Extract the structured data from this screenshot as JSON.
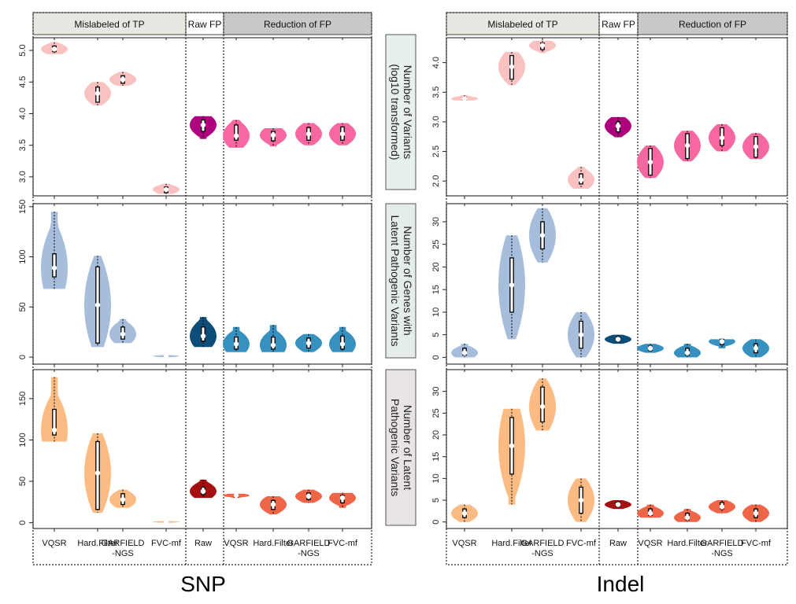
{
  "figure": {
    "panels": [
      {
        "title": "SNP"
      },
      {
        "title": "Indel"
      }
    ],
    "group_strips": {
      "mislabeled": "Mislabeled of TP",
      "raw": "Raw FP",
      "reduction": "Reduction of FP"
    },
    "x_labels": {
      "left": [
        "VQSR",
        "Hard.Filter",
        "GARFIELD\n-NGS",
        "FVC-mf"
      ],
      "raw": "Raw",
      "right": [
        "VQSR",
        "Hard.Filter",
        "GARFIELD\n-NGS",
        "FVC-mf"
      ]
    },
    "row_labels": [
      {
        "lines": [
          "Number of Variants",
          "(log10 transformed)"
        ],
        "bg": "#e8f0ec"
      },
      {
        "lines": [
          "Number of Genes with",
          "Latent Pathogenic Variants"
        ],
        "bg": "#e4ecec"
      },
      {
        "lines": [
          "Number of Latent",
          "Pathogenic Variants"
        ],
        "bg": "#e8e4e4"
      }
    ]
  },
  "colors": {
    "row1": {
      "light": "#f9c2c1",
      "raw": "#ae017e",
      "red": "#f768a1"
    },
    "row2": {
      "light": "#a6bddb",
      "raw": "#0c4e78",
      "red": "#3690c0"
    },
    "row3": {
      "light": "#fdbb84",
      "raw": "#a50f0f",
      "red": "#ef6548"
    },
    "strip_light": "#e8e8e2",
    "strip_dark": "#c8c8c8"
  },
  "chart_data": [
    {
      "type": "violin",
      "panel": "SNP",
      "row": "Number of Variants (log10 transformed)",
      "ylim": [
        2.7,
        5.2
      ],
      "yticks": [
        3.0,
        3.5,
        4.0,
        4.5,
        5.0
      ],
      "categories": [
        "VQSR",
        "Hard.Filter",
        "GARFIELD-NGS",
        "FVC-mf",
        "Raw",
        "VQSR",
        "Hard.Filter",
        "GARFIELD-NGS",
        "FVC-mf"
      ],
      "violins": [
        {
          "group": "Mislabeled of TP",
          "label": "VQSR",
          "min": 4.94,
          "q1": 4.98,
          "median": 5.02,
          "q3": 5.07,
          "max": 5.13,
          "maxw": 0.55
        },
        {
          "group": "Mislabeled of TP",
          "label": "Hard.Filter",
          "min": 4.13,
          "q1": 4.18,
          "median": 4.32,
          "q3": 4.42,
          "max": 4.5,
          "maxw": 0.55
        },
        {
          "group": "Mislabeled of TP",
          "label": "GARFIELD-NGS",
          "min": 4.44,
          "q1": 4.48,
          "median": 4.54,
          "q3": 4.6,
          "max": 4.66,
          "maxw": 0.55
        },
        {
          "group": "Mislabeled of TP",
          "label": "FVC-mf",
          "min": 2.73,
          "q1": 2.75,
          "median": 2.8,
          "q3": 2.84,
          "max": 2.89,
          "maxw": 0.55
        },
        {
          "group": "Raw FP",
          "label": "Raw",
          "min": 3.6,
          "q1": 3.72,
          "median": 3.82,
          "q3": 3.9,
          "max": 3.96,
          "maxw": 0.55
        },
        {
          "group": "Reduction of FP",
          "label": "VQSR",
          "min": 3.46,
          "q1": 3.58,
          "median": 3.65,
          "q3": 3.82,
          "max": 3.9,
          "maxw": 0.55
        },
        {
          "group": "Reduction of FP",
          "label": "Hard.Filter",
          "min": 3.48,
          "q1": 3.57,
          "median": 3.66,
          "q3": 3.72,
          "max": 3.77,
          "maxw": 0.55
        },
        {
          "group": "Reduction of FP",
          "label": "GARFIELD-NGS",
          "min": 3.5,
          "q1": 3.58,
          "median": 3.68,
          "q3": 3.78,
          "max": 3.85,
          "maxw": 0.55
        },
        {
          "group": "Reduction of FP",
          "label": "FVC-mf",
          "min": 3.5,
          "q1": 3.58,
          "median": 3.68,
          "q3": 3.79,
          "max": 3.85,
          "maxw": 0.55
        }
      ]
    },
    {
      "type": "violin",
      "panel": "SNP",
      "row": "Number of Genes with Latent Pathogenic Variants",
      "ylim": [
        -7,
        153
      ],
      "yticks": [
        0,
        50,
        100,
        150
      ],
      "categories": [
        "VQSR",
        "Hard.Filter",
        "GARFIELD-NGS",
        "FVC-mf",
        "Raw",
        "VQSR",
        "Hard.Filter",
        "GARFIELD-NGS",
        "FVC-mf"
      ],
      "violins": [
        {
          "group": "Mislabeled of TP",
          "label": "VQSR",
          "min": 68,
          "q1": 80,
          "median": 89,
          "q3": 103,
          "max": 145,
          "maxw": 0.55
        },
        {
          "group": "Mislabeled of TP",
          "label": "Hard.Filter",
          "min": 10,
          "q1": 14,
          "median": 52,
          "q3": 90,
          "max": 101,
          "maxw": 0.55
        },
        {
          "group": "Mislabeled of TP",
          "label": "GARFIELD-NGS",
          "min": 14,
          "q1": 18,
          "median": 23,
          "q3": 30,
          "max": 38,
          "maxw": 0.55
        },
        {
          "group": "Mislabeled of TP",
          "label": "FVC-mf",
          "min": 0,
          "q1": 0,
          "median": 1,
          "q3": 2,
          "max": 2,
          "maxw": 0.55
        },
        {
          "group": "Raw FP",
          "label": "Raw",
          "min": 10,
          "q1": 16,
          "median": 21,
          "q3": 30,
          "max": 40,
          "maxw": 0.55
        },
        {
          "group": "Reduction of FP",
          "label": "VQSR",
          "min": 5,
          "q1": 8,
          "median": 13,
          "q3": 20,
          "max": 30,
          "maxw": 0.55
        },
        {
          "group": "Reduction of FP",
          "label": "Hard.Filter",
          "min": 5,
          "q1": 8,
          "median": 12,
          "q3": 20,
          "max": 32,
          "maxw": 0.55
        },
        {
          "group": "Reduction of FP",
          "label": "GARFIELD-NGS",
          "min": 5,
          "q1": 9,
          "median": 14,
          "q3": 19,
          "max": 23,
          "maxw": 0.55
        },
        {
          "group": "Reduction of FP",
          "label": "FVC-mf",
          "min": 5,
          "q1": 8,
          "median": 13,
          "q3": 21,
          "max": 30,
          "maxw": 0.55
        }
      ]
    },
    {
      "type": "violin",
      "panel": "SNP",
      "row": "Number of Latent Pathogenic Variants",
      "ylim": [
        -7,
        185
      ],
      "yticks": [
        0,
        50,
        100,
        150
      ],
      "categories": [
        "VQSR",
        "Hard.Filter",
        "GARFIELD-NGS",
        "FVC-mf",
        "Raw",
        "VQSR",
        "Hard.Filter",
        "GARFIELD-NGS",
        "FVC-mf"
      ],
      "violins": [
        {
          "group": "Mislabeled of TP",
          "label": "VQSR",
          "min": 98,
          "q1": 106,
          "median": 112,
          "q3": 137,
          "max": 176,
          "maxw": 0.55
        },
        {
          "group": "Mislabeled of TP",
          "label": "Hard.Filter",
          "min": 12,
          "q1": 16,
          "median": 60,
          "q3": 98,
          "max": 108,
          "maxw": 0.55
        },
        {
          "group": "Mislabeled of TP",
          "label": "GARFIELD-NGS",
          "min": 18,
          "q1": 22,
          "median": 28,
          "q3": 35,
          "max": 40,
          "maxw": 0.55
        },
        {
          "group": "Mislabeled of TP",
          "label": "FVC-mf",
          "min": 0,
          "q1": 0,
          "median": 1,
          "q3": 2,
          "max": 2,
          "maxw": 0.55
        },
        {
          "group": "Raw FP",
          "label": "Raw",
          "min": 30,
          "q1": 34,
          "median": 38,
          "q3": 43,
          "max": 52,
          "maxw": 0.55
        },
        {
          "group": "Reduction of FP",
          "label": "VQSR",
          "min": 30,
          "q1": 31,
          "median": 33,
          "q3": 34,
          "max": 35,
          "maxw": 0.55
        },
        {
          "group": "Reduction of FP",
          "label": "Hard.Filter",
          "min": 10,
          "q1": 16,
          "median": 22,
          "q3": 27,
          "max": 32,
          "maxw": 0.55
        },
        {
          "group": "Reduction of FP",
          "label": "GARFIELD-NGS",
          "min": 24,
          "q1": 28,
          "median": 32,
          "q3": 36,
          "max": 40,
          "maxw": 0.55
        },
        {
          "group": "Reduction of FP",
          "label": "FVC-mf",
          "min": 18,
          "q1": 24,
          "median": 30,
          "q3": 33,
          "max": 36,
          "maxw": 0.55
        }
      ]
    },
    {
      "type": "violin",
      "panel": "Indel",
      "row": "Number of Variants (log10 transformed)",
      "ylim": [
        1.75,
        4.42
      ],
      "yticks": [
        2.0,
        2.5,
        3.0,
        3.5,
        4.0
      ],
      "categories": [
        "VQSR",
        "Hard.Filter",
        "GARFIELD-NGS",
        "FVC-mf",
        "Raw",
        "VQSR",
        "Hard.Filter",
        "GARFIELD-NGS",
        "FVC-mf"
      ],
      "violins": [
        {
          "group": "Mislabeled of TP",
          "label": "VQSR",
          "min": 3.36,
          "q1": 3.37,
          "median": 3.39,
          "q3": 3.41,
          "max": 3.45,
          "maxw": 0.55
        },
        {
          "group": "Mislabeled of TP",
          "label": "Hard.Filter",
          "min": 3.62,
          "q1": 3.72,
          "median": 3.93,
          "q3": 4.12,
          "max": 4.18,
          "maxw": 0.55
        },
        {
          "group": "Mislabeled of TP",
          "label": "GARFIELD-NGS",
          "min": 4.16,
          "q1": 4.22,
          "median": 4.29,
          "q3": 4.33,
          "max": 4.37,
          "maxw": 0.55
        },
        {
          "group": "Mislabeled of TP",
          "label": "FVC-mf",
          "min": 1.87,
          "q1": 1.95,
          "median": 2.02,
          "q3": 2.12,
          "max": 2.24,
          "maxw": 0.55
        },
        {
          "group": "Raw FP",
          "label": "Raw",
          "min": 2.74,
          "q1": 2.83,
          "median": 2.93,
          "q3": 3.0,
          "max": 3.08,
          "maxw": 0.55
        },
        {
          "group": "Reduction of FP",
          "label": "VQSR",
          "min": 2.05,
          "q1": 2.1,
          "median": 2.32,
          "q3": 2.55,
          "max": 2.6,
          "maxw": 0.55
        },
        {
          "group": "Reduction of FP",
          "label": "Hard.Filter",
          "min": 2.33,
          "q1": 2.38,
          "median": 2.6,
          "q3": 2.8,
          "max": 2.85,
          "maxw": 0.55
        },
        {
          "group": "Reduction of FP",
          "label": "GARFIELD-NGS",
          "min": 2.5,
          "q1": 2.6,
          "median": 2.73,
          "q3": 2.9,
          "max": 2.96,
          "maxw": 0.55
        },
        {
          "group": "Reduction of FP",
          "label": "FVC-mf",
          "min": 2.37,
          "q1": 2.4,
          "median": 2.58,
          "q3": 2.75,
          "max": 2.81,
          "maxw": 0.55
        }
      ]
    },
    {
      "type": "violin",
      "panel": "Indel",
      "row": "Number of Genes with Latent Pathogenic Variants",
      "ylim": [
        -1.5,
        34
      ],
      "yticks": [
        0,
        5,
        10,
        15,
        20,
        25,
        30
      ],
      "categories": [
        "VQSR",
        "Hard.Filter",
        "GARFIELD-NGS",
        "FVC-mf",
        "Raw",
        "VQSR",
        "Hard.Filter",
        "GARFIELD-NGS",
        "FVC-mf"
      ],
      "violins": [
        {
          "group": "Mislabeled of TP",
          "label": "VQSR",
          "min": 0,
          "q1": 0.5,
          "median": 1,
          "q3": 2,
          "max": 3,
          "maxw": 0.55
        },
        {
          "group": "Mislabeled of TP",
          "label": "Hard.Filter",
          "min": 4,
          "q1": 10,
          "median": 16,
          "q3": 22,
          "max": 27,
          "maxw": 0.55
        },
        {
          "group": "Mislabeled of TP",
          "label": "GARFIELD-NGS",
          "min": 21,
          "q1": 24,
          "median": 27,
          "q3": 30,
          "max": 33,
          "maxw": 0.55
        },
        {
          "group": "Mislabeled of TP",
          "label": "FVC-mf",
          "min": 0,
          "q1": 2,
          "median": 5,
          "q3": 8,
          "max": 10,
          "maxw": 0.55
        },
        {
          "group": "Raw FP",
          "label": "Raw",
          "min": 3,
          "q1": 3.5,
          "median": 4,
          "q3": 4.5,
          "max": 5,
          "maxw": 0.55
        },
        {
          "group": "Reduction of FP",
          "label": "VQSR",
          "min": 1,
          "q1": 1.5,
          "median": 2,
          "q3": 2.5,
          "max": 3,
          "maxw": 0.55
        },
        {
          "group": "Reduction of FP",
          "label": "Hard.Filter",
          "min": 0,
          "q1": 0.5,
          "median": 1,
          "q3": 2,
          "max": 3,
          "maxw": 0.55
        },
        {
          "group": "Reduction of FP",
          "label": "GARFIELD-NGS",
          "min": 2,
          "q1": 2.8,
          "median": 3.5,
          "q3": 4,
          "max": 4,
          "maxw": 0.55
        },
        {
          "group": "Reduction of FP",
          "label": "FVC-mf",
          "min": 0,
          "q1": 1,
          "median": 2,
          "q3": 3,
          "max": 4,
          "maxw": 0.55
        }
      ]
    },
    {
      "type": "violin",
      "panel": "Indel",
      "row": "Number of Latent Pathogenic Variants",
      "ylim": [
        -1.5,
        35
      ],
      "yticks": [
        0,
        5,
        10,
        15,
        20,
        25,
        30
      ],
      "categories": [
        "VQSR",
        "Hard.Filter",
        "GARFIELD-NGS",
        "FVC-mf",
        "Raw",
        "VQSR",
        "Hard.Filter",
        "GARFIELD-NGS",
        "FVC-mf"
      ],
      "violins": [
        {
          "group": "Mislabeled of TP",
          "label": "VQSR",
          "min": 0,
          "q1": 1,
          "median": 2,
          "q3": 3,
          "max": 4,
          "maxw": 0.55
        },
        {
          "group": "Mislabeled of TP",
          "label": "Hard.Filter",
          "min": 4,
          "q1": 11,
          "median": 17.5,
          "q3": 24,
          "max": 26,
          "maxw": 0.55
        },
        {
          "group": "Mislabeled of TP",
          "label": "GARFIELD-NGS",
          "min": 21,
          "q1": 23,
          "median": 26.5,
          "q3": 31,
          "max": 33,
          "maxw": 0.55
        },
        {
          "group": "Mislabeled of TP",
          "label": "FVC-mf",
          "min": 0,
          "q1": 2,
          "median": 5,
          "q3": 8,
          "max": 10,
          "maxw": 0.55
        },
        {
          "group": "Raw FP",
          "label": "Raw",
          "min": 3,
          "q1": 3.5,
          "median": 4,
          "q3": 4.5,
          "max": 5,
          "maxw": 0.55
        },
        {
          "group": "Reduction of FP",
          "label": "VQSR",
          "min": 1,
          "q1": 1.5,
          "median": 2,
          "q3": 3,
          "max": 4,
          "maxw": 0.55
        },
        {
          "group": "Reduction of FP",
          "label": "Hard.Filter",
          "min": 0,
          "q1": 0.5,
          "median": 1,
          "q3": 2,
          "max": 3,
          "maxw": 0.55
        },
        {
          "group": "Reduction of FP",
          "label": "GARFIELD-NGS",
          "min": 2,
          "q1": 3,
          "median": 3.5,
          "q3": 4.5,
          "max": 5,
          "maxw": 0.55
        },
        {
          "group": "Reduction of FP",
          "label": "FVC-mf",
          "min": 0,
          "q1": 1,
          "median": 2,
          "q3": 3,
          "max": 4,
          "maxw": 0.55
        }
      ]
    }
  ]
}
